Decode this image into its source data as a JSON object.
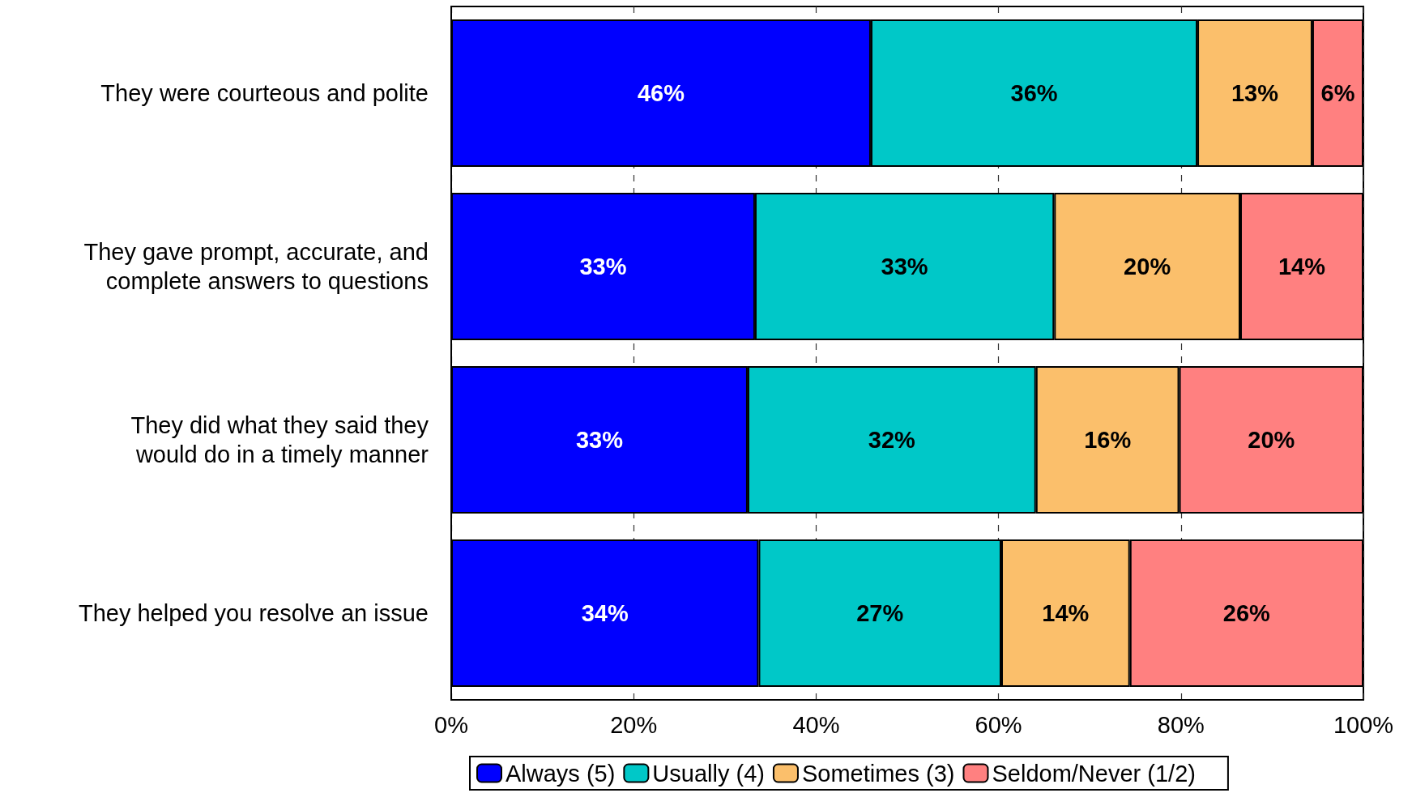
{
  "chart_data": {
    "type": "bar",
    "orientation": "horizontal",
    "stacked": true,
    "categories": [
      "They were courteous and polite",
      "They gave prompt, accurate, and\ncomplete answers to questions",
      "They did what they said they\nwould do in a timely manner",
      "They helped you resolve an issue"
    ],
    "series": [
      {
        "name": "Always (5)",
        "color": "#0000ff",
        "values": [
          46,
          33.3,
          32.5,
          33.7
        ],
        "value_labels": [
          "46%",
          "33%",
          "33%",
          "34%"
        ]
      },
      {
        "name": "Usually (4)",
        "color": "#00c8c8",
        "values": [
          35.8,
          32.8,
          31.6,
          26.6
        ],
        "value_labels": [
          "36%",
          "33%",
          "32%",
          "27%"
        ]
      },
      {
        "name": "Sometimes (3)",
        "color": "#fbbf6b",
        "values": [
          12.6,
          20.4,
          15.7,
          14.1
        ],
        "value_labels": [
          "13%",
          "20%",
          "16%",
          "14%"
        ]
      },
      {
        "name": "Seldom/Never (1/2)",
        "color": "#ff8080",
        "values": [
          5.6,
          13.5,
          20.2,
          25.6
        ],
        "value_labels": [
          "6%",
          "14%",
          "20%",
          "26%"
        ]
      }
    ],
    "xlim": [
      0,
      100
    ],
    "xticks": [
      {
        "value": 0,
        "label": "0%"
      },
      {
        "value": 20,
        "label": "20%"
      },
      {
        "value": 40,
        "label": "40%"
      },
      {
        "value": 60,
        "label": "60%"
      },
      {
        "value": 80,
        "label": "80%"
      },
      {
        "value": 100,
        "label": "100%"
      }
    ],
    "grid": "x",
    "legend": "bottom"
  }
}
